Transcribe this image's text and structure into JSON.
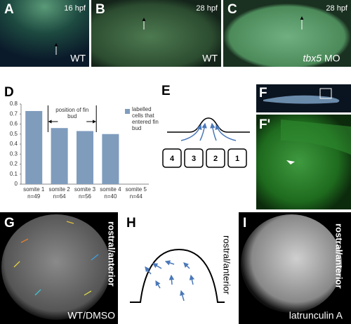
{
  "panels": {
    "A": {
      "label": "A",
      "stage": "16 hpf",
      "condition": "WT"
    },
    "B": {
      "label": "B",
      "stage": "28 hpf",
      "condition": "WT"
    },
    "C": {
      "label": "C",
      "stage": "28 hpf",
      "gene": "tbx5",
      "condition": "MO"
    },
    "D": {
      "label": "D"
    },
    "E": {
      "label": "E",
      "somites": [
        "4",
        "3",
        "2",
        "1"
      ]
    },
    "F": {
      "label": "F"
    },
    "F_prime": {
      "label": "F'"
    },
    "G": {
      "label": "G",
      "axis": "rostral/anterior",
      "condition": "WT/DMSO"
    },
    "H": {
      "label": "H",
      "axis": "rostral/anterior"
    },
    "I": {
      "label": "I",
      "axis": "rostral/anterior",
      "condition": "latrunculin A"
    }
  },
  "chart_data": {
    "type": "bar",
    "categories": [
      "somite 1",
      "somite 2",
      "somite 3",
      "somite 4",
      "somite 5"
    ],
    "n_labels": [
      "n=49",
      "n=64",
      "n=56",
      "n=40",
      "n=44"
    ],
    "series": [
      {
        "name": "labelled cells that entered fin bud",
        "color": "#7f9cbd",
        "values": [
          0.73,
          0.56,
          0.53,
          0.5,
          null
        ]
      }
    ],
    "ylim": [
      0,
      0.8
    ],
    "yticks": [
      0,
      0.1,
      0.2,
      0.3,
      0.4,
      0.5,
      0.6,
      0.7,
      0.8
    ],
    "annotation": "position of fin bud",
    "grid": false
  }
}
